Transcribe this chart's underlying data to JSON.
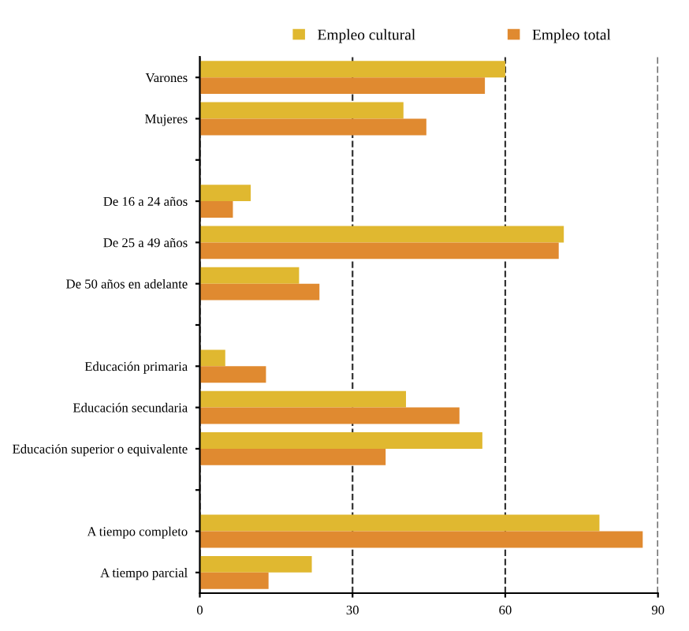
{
  "chart_data": {
    "type": "bar",
    "orientation": "horizontal",
    "categories": [
      "Varones",
      "Mujeres",
      null,
      "De 16 a 24 años",
      "De 25 a 49 años",
      "De 50 años en adelante",
      null,
      "Educación primaria",
      "Educación secundaria",
      "Educación superior o equivalente",
      null,
      "A tiempo completo",
      "A tiempo parcial"
    ],
    "series": [
      {
        "name": "Empleo cultural",
        "color": "#e0b830",
        "values": [
          60,
          40,
          0,
          10,
          71.5,
          19.5,
          0,
          5,
          40.5,
          55.5,
          0,
          78.5,
          22
        ]
      },
      {
        "name": "Empleo total",
        "color": "#e08a30",
        "values": [
          56,
          44.5,
          0,
          6.5,
          70.5,
          23.5,
          0,
          13,
          51,
          36.5,
          0,
          87,
          13.5
        ]
      }
    ],
    "xlim": [
      0,
      90
    ],
    "xticks": [
      0,
      30,
      60,
      90
    ],
    "grid": "x",
    "legend": "top"
  }
}
